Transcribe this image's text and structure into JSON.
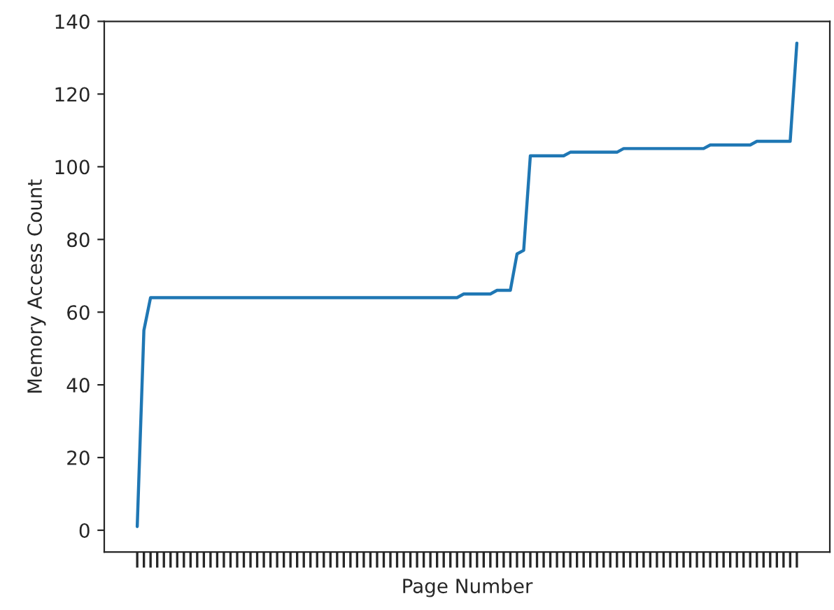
{
  "chart_data": {
    "type": "line",
    "xlabel": "Page Number",
    "ylabel": "Memory Access Count",
    "categories": [
      null,
      null,
      null,
      null,
      null,
      null,
      null,
      null,
      null,
      null,
      null,
      null,
      null,
      null,
      null,
      null,
      null,
      null,
      null,
      null,
      null,
      null,
      null,
      null,
      null,
      null,
      null,
      null,
      null,
      null,
      null,
      null,
      null,
      null,
      null,
      null,
      null,
      null,
      null,
      null,
      null,
      null,
      null,
      null,
      null,
      null,
      null,
      null,
      null,
      null,
      null,
      null,
      null,
      null,
      null,
      null,
      null,
      null,
      null,
      null,
      null,
      null,
      null,
      null,
      null,
      null,
      null,
      null,
      null,
      null,
      null,
      null,
      null,
      null,
      null,
      null,
      null,
      null,
      null,
      null,
      null,
      null,
      null,
      null,
      null,
      null,
      null,
      null,
      null,
      null,
      null,
      null,
      null,
      null,
      null,
      null,
      null,
      null,
      null,
      null
    ],
    "series": [
      {
        "color": "#1f77b4",
        "values": [
          1,
          55,
          64,
          64,
          64,
          64,
          64,
          64,
          64,
          64,
          64,
          64,
          64,
          64,
          64,
          64,
          64,
          64,
          64,
          64,
          64,
          64,
          64,
          64,
          64,
          64,
          64,
          64,
          64,
          64,
          64,
          64,
          64,
          64,
          64,
          64,
          64,
          64,
          64,
          64,
          64,
          64,
          64,
          64,
          64,
          64,
          64,
          64,
          64,
          65,
          65,
          65,
          65,
          65,
          66,
          66,
          66,
          76,
          77,
          103,
          103,
          103,
          103,
          103,
          103,
          104,
          104,
          104,
          104,
          104,
          104,
          104,
          104,
          105,
          105,
          105,
          105,
          105,
          105,
          105,
          105,
          105,
          105,
          105,
          105,
          105,
          106,
          106,
          106,
          106,
          106,
          106,
          106,
          107,
          107,
          107,
          107,
          107,
          107,
          134
        ]
      }
    ],
    "ylim": [
      -6,
      140
    ],
    "yticks": [
      0,
      20,
      40,
      60,
      80,
      100,
      120,
      140
    ],
    "grid": false,
    "marker": "none",
    "line_style": "solid"
  }
}
